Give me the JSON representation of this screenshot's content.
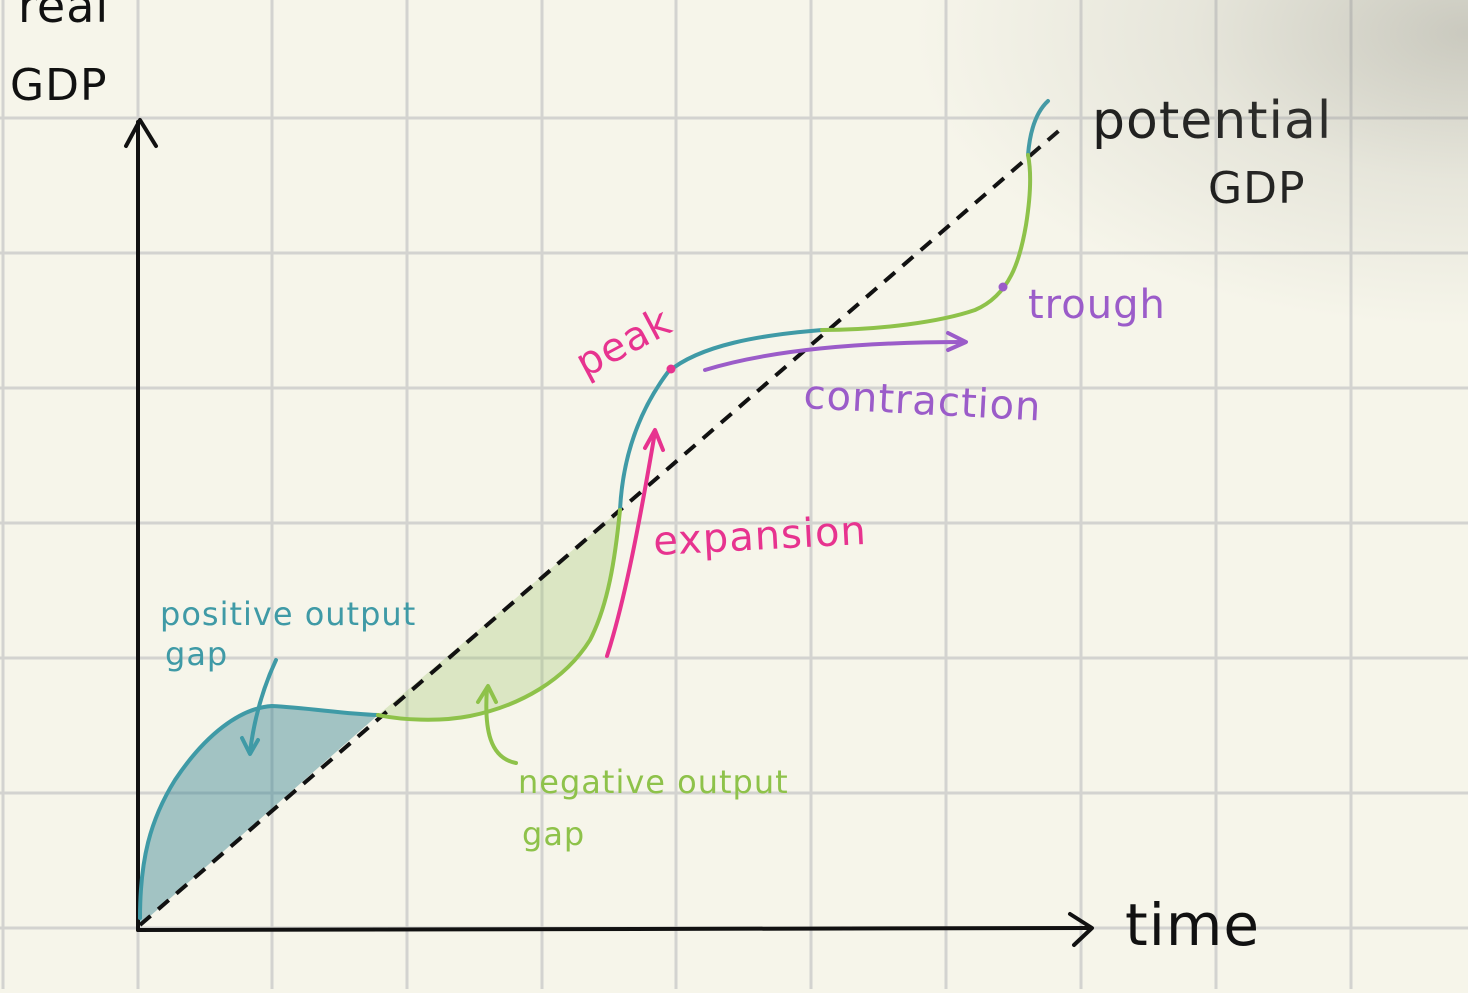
{
  "labels": {
    "y_axis_line1": "real",
    "y_axis_line2": "GDP",
    "x_axis": "time",
    "potential_line1": "potential",
    "potential_line2": "GDP",
    "peak": "peak",
    "trough": "trough",
    "expansion": "expansion",
    "contraction": "contraction",
    "positive_gap_line1": "positive output",
    "positive_gap_line2": "gap",
    "negative_gap_line1": "negative output",
    "negative_gap_line2": "gap"
  },
  "colors": {
    "background": "#f6f5ea",
    "grid": "#d3d3d0",
    "axis": "#111111",
    "potential_line": "#111111",
    "above_potential": "#3f9aa6",
    "above_fill": "#2d7f8c",
    "below_potential": "#8ec24a",
    "below_fill": "#d6e7c0",
    "peak_expansion": "#e7338f",
    "contraction_trough": "#9b5cc9"
  }
}
